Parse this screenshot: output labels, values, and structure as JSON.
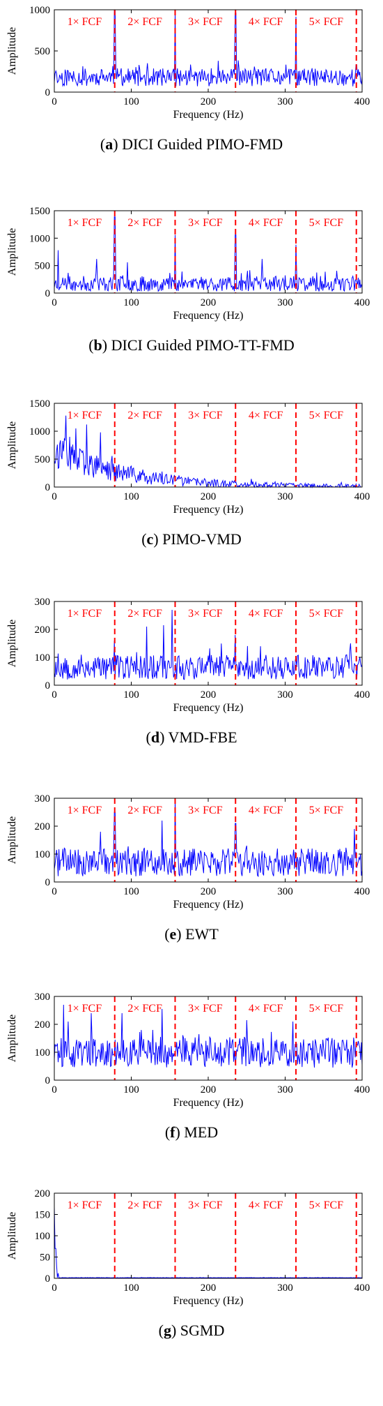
{
  "colors": {
    "signal": "#0000ff",
    "marker": "#ff0000",
    "axis": "#000000",
    "text": "#000000"
  },
  "harmonic_labels": [
    "1× FCF",
    "2× FCF",
    "3× FCF",
    "4× FCF",
    "5× FCF"
  ],
  "chart_data": [
    {
      "type": "line",
      "letter": "a",
      "caption": "DICI Guided PIMO-FMD",
      "xlabel": "Frequency (Hz)",
      "ylabel": "Amplitude",
      "xlim": [
        0,
        400
      ],
      "ylim": [
        0,
        1000
      ],
      "xticks": [
        0,
        100,
        200,
        300,
        400
      ],
      "yticks": [
        0,
        500,
        1000
      ],
      "fault_freq": 78.5,
      "harmonic_markers": [
        78.5,
        157,
        235.5,
        314,
        392.5
      ],
      "peaks": [
        [
          78.5,
          990
        ],
        [
          157,
          970
        ],
        [
          235.5,
          960
        ],
        [
          314,
          915
        ],
        [
          392.5,
          330
        ],
        [
          213,
          380
        ],
        [
          110,
          330
        ],
        [
          260,
          310
        ]
      ],
      "noise": {
        "base": 180,
        "amp": 110,
        "seed": 11,
        "decay": 0
      }
    },
    {
      "type": "line",
      "letter": "b",
      "caption": "DICI Guided PIMO-TT-FMD",
      "xlabel": "Frequency (Hz)",
      "ylabel": "Amplitude",
      "xlim": [
        0,
        400
      ],
      "ylim": [
        0,
        1500
      ],
      "xticks": [
        0,
        100,
        200,
        300,
        400
      ],
      "yticks": [
        0,
        500,
        1000,
        1500
      ],
      "fault_freq": 78.5,
      "harmonic_markers": [
        78.5,
        157,
        235.5,
        314,
        392.5
      ],
      "peaks": [
        [
          5,
          780
        ],
        [
          78.5,
          1390
        ],
        [
          157,
          1060
        ],
        [
          235.5,
          1060
        ],
        [
          314,
          880
        ],
        [
          270,
          620
        ],
        [
          95,
          560
        ],
        [
          55,
          620
        ]
      ],
      "noise": {
        "base": 170,
        "amp": 140,
        "seed": 23,
        "decay": 0
      }
    },
    {
      "type": "line",
      "letter": "c",
      "caption": "PIMO-VMD",
      "xlabel": "Frequency (Hz)",
      "ylabel": "Amplitude",
      "xlim": [
        0,
        400
      ],
      "ylim": [
        0,
        1500
      ],
      "xticks": [
        0,
        100,
        200,
        300,
        400
      ],
      "yticks": [
        0,
        500,
        1000,
        1500
      ],
      "fault_freq": 78.5,
      "harmonic_markers": [
        78.5,
        157,
        235.5,
        314,
        392.5
      ],
      "peaks": [
        [
          15,
          1280
        ],
        [
          28,
          1050
        ],
        [
          42,
          1120
        ],
        [
          60,
          980
        ],
        [
          20,
          900
        ]
      ],
      "noise": {
        "base": 650,
        "amp": 300,
        "seed": 37,
        "decay": 0.011
      }
    },
    {
      "type": "line",
      "letter": "d",
      "caption": "VMD-FBE",
      "xlabel": "Frequency (Hz)",
      "ylabel": "Amplitude",
      "xlim": [
        0,
        400
      ],
      "ylim": [
        0,
        300
      ],
      "xticks": [
        0,
        100,
        200,
        300,
        400
      ],
      "yticks": [
        0,
        100,
        200,
        300
      ],
      "fault_freq": 78.5,
      "harmonic_markers": [
        78.5,
        157,
        235.5,
        314,
        392.5
      ],
      "peaks": [
        [
          120,
          210
        ],
        [
          142,
          215
        ],
        [
          153,
          270
        ],
        [
          235,
          180
        ],
        [
          385,
          150
        ],
        [
          78,
          160
        ]
      ],
      "noise": {
        "base": 65,
        "amp": 45,
        "seed": 53,
        "decay": 0
      }
    },
    {
      "type": "line",
      "letter": "e",
      "caption": "EWT",
      "xlabel": "Frequency (Hz)",
      "ylabel": "Amplitude",
      "xlim": [
        0,
        400
      ],
      "ylim": [
        0,
        300
      ],
      "xticks": [
        0,
        100,
        200,
        300,
        400
      ],
      "yticks": [
        0,
        100,
        200,
        300
      ],
      "fault_freq": 78.5,
      "harmonic_markers": [
        78.5,
        157,
        235.5,
        314,
        392.5
      ],
      "peaks": [
        [
          78.5,
          250
        ],
        [
          157,
          300
        ],
        [
          235.5,
          210
        ],
        [
          140,
          220
        ],
        [
          60,
          180
        ],
        [
          390,
          190
        ]
      ],
      "noise": {
        "base": 70,
        "amp": 50,
        "seed": 71,
        "decay": 0
      }
    },
    {
      "type": "line",
      "letter": "f",
      "caption": "MED",
      "xlabel": "Frequency (Hz)",
      "ylabel": "Amplitude",
      "xlim": [
        0,
        400
      ],
      "ylim": [
        0,
        300
      ],
      "xticks": [
        0,
        100,
        200,
        300,
        400
      ],
      "yticks": [
        0,
        100,
        200,
        300
      ],
      "fault_freq": 78.5,
      "harmonic_markers": [
        78.5,
        157,
        235.5,
        314,
        392.5
      ],
      "peaks": [
        [
          12,
          270
        ],
        [
          18,
          210
        ],
        [
          48,
          240
        ],
        [
          88,
          240
        ],
        [
          140,
          255
        ],
        [
          250,
          215
        ],
        [
          310,
          210
        ],
        [
          395,
          140
        ]
      ],
      "noise": {
        "base": 100,
        "amp": 55,
        "seed": 89,
        "decay": 0
      }
    },
    {
      "type": "line",
      "letter": "g",
      "caption": "SGMD",
      "xlabel": "Frequency (Hz)",
      "ylabel": "Amplitude",
      "xlim": [
        0,
        400
      ],
      "ylim": [
        0,
        200
      ],
      "xticks": [
        0,
        100,
        200,
        300,
        400
      ],
      "yticks": [
        0,
        50,
        100,
        150,
        200
      ],
      "fault_freq": 78.5,
      "harmonic_markers": [
        78.5,
        157,
        235.5,
        314,
        392.5
      ],
      "peaks": [
        [
          0.5,
          168
        ],
        [
          1.5,
          70
        ],
        [
          3,
          30
        ],
        [
          5,
          12
        ]
      ],
      "noise": {
        "base": 1.2,
        "amp": 0.6,
        "seed": 97,
        "decay": 0
      }
    }
  ]
}
